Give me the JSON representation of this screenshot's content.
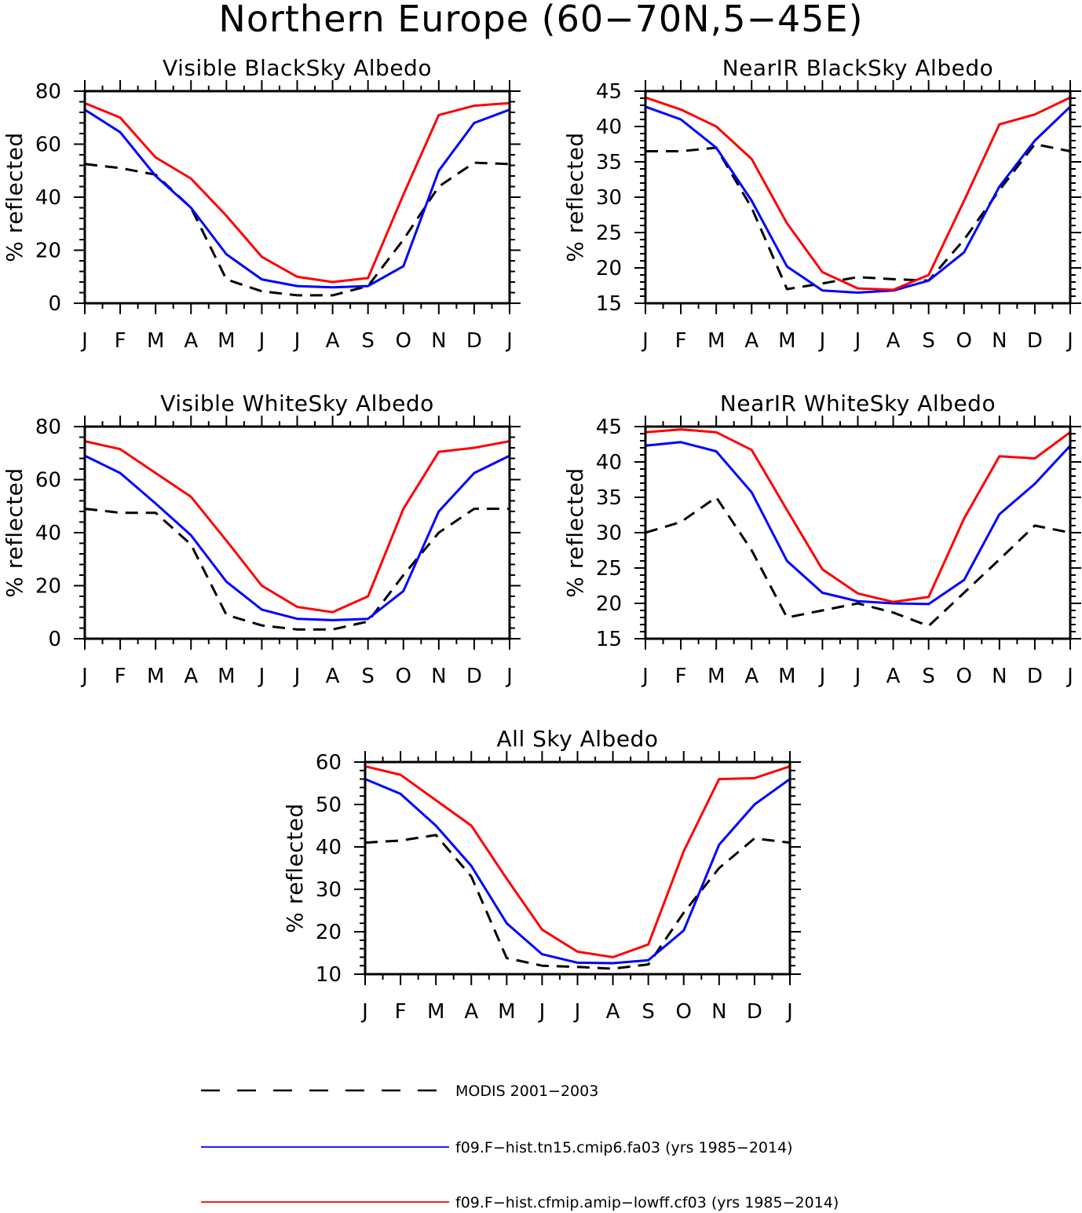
{
  "figure": {
    "title": "Northern Europe (60−70N,5−45E)"
  },
  "months": [
    "J",
    "F",
    "M",
    "A",
    "M",
    "J",
    "J",
    "A",
    "S",
    "O",
    "N",
    "D",
    "J"
  ],
  "colors": {
    "modis": "#000000",
    "fa03": "#0000ff",
    "cf03": "#ff0000"
  },
  "chart_data": [
    {
      "type": "line",
      "title": "Visible BlackSky Albedo",
      "ylabel": "% reflected",
      "categories": [
        "J",
        "F",
        "M",
        "A",
        "M",
        "J",
        "J",
        "A",
        "S",
        "O",
        "N",
        "D",
        "J"
      ],
      "ylim": [
        0,
        80
      ],
      "yticks": [
        "0",
        "20",
        "40",
        "60",
        "80"
      ],
      "series": [
        {
          "name": "MODIS 2001−2003",
          "values": [
            52.5,
            51,
            48.5,
            36,
            9,
            4.5,
            3,
            3,
            6.5,
            24,
            44,
            53,
            52.5
          ]
        },
        {
          "name": "f09.F−hist.tn15.cmip6.fa03 (yrs 1985−2014)",
          "values": [
            73,
            64.5,
            48,
            36,
            18.5,
            9,
            6.5,
            6,
            6.5,
            14,
            50,
            68,
            73
          ]
        },
        {
          "name": "f09.F−hist.cfmip.amip−lowff.cf03 (yrs 1985−2014)",
          "values": [
            75.5,
            70,
            55,
            47,
            33,
            17.5,
            10,
            8,
            9.5,
            41,
            71,
            74.5,
            75.5
          ]
        }
      ]
    },
    {
      "type": "line",
      "title": "NearIR BlackSky Albedo",
      "ylabel": "% reflected",
      "categories": [
        "J",
        "F",
        "M",
        "A",
        "M",
        "J",
        "J",
        "A",
        "S",
        "O",
        "N",
        "D",
        "J"
      ],
      "ylim": [
        15,
        45
      ],
      "yticks": [
        "15",
        "20",
        "25",
        "30",
        "35",
        "40",
        "45"
      ],
      "series": [
        {
          "name": "MODIS 2001−2003",
          "values": [
            36.5,
            36.5,
            37,
            28.5,
            17,
            17.8,
            18.7,
            18.4,
            18.2,
            24,
            31,
            37.5,
            36.5
          ]
        },
        {
          "name": "f09.F−hist.tn15.cmip6.fa03 (yrs 1985−2014)",
          "values": [
            42.8,
            41,
            37,
            29.5,
            20.2,
            16.8,
            16.5,
            16.8,
            18.2,
            22.2,
            31.5,
            38,
            42.8
          ]
        },
        {
          "name": "f09.F−hist.cfmip.amip−lowff.cf03 (yrs 1985−2014)",
          "values": [
            44.1,
            42.4,
            40,
            35.4,
            26.3,
            19.4,
            17.1,
            16.9,
            19,
            29.5,
            40.3,
            41.7,
            44.1
          ]
        }
      ]
    },
    {
      "type": "line",
      "title": "Visible WhiteSky Albedo",
      "ylabel": "% reflected",
      "categories": [
        "J",
        "F",
        "M",
        "A",
        "M",
        "J",
        "J",
        "A",
        "S",
        "O",
        "N",
        "D",
        "J"
      ],
      "ylim": [
        0,
        80
      ],
      "yticks": [
        "0",
        "20",
        "40",
        "60",
        "80"
      ],
      "series": [
        {
          "name": "MODIS 2001−2003",
          "values": [
            49,
            47.5,
            47.5,
            35.5,
            9,
            5,
            3.5,
            3.5,
            6.5,
            24,
            40,
            49,
            49
          ]
        },
        {
          "name": "f09.F−hist.tn15.cmip6.fa03 (yrs 1985−2014)",
          "values": [
            69,
            62.5,
            51,
            39,
            21.5,
            11,
            7.5,
            7,
            7.5,
            18,
            48,
            62.5,
            69
          ]
        },
        {
          "name": "f09.F−hist.cfmip.amip−lowff.cf03 (yrs 1985−2014)",
          "values": [
            74.5,
            71.5,
            62.5,
            53.5,
            37,
            20,
            12,
            10,
            16,
            49,
            70.5,
            72,
            74.5
          ]
        }
      ]
    },
    {
      "type": "line",
      "title": "NearIR WhiteSky Albedo",
      "ylabel": "% reflected",
      "categories": [
        "J",
        "F",
        "M",
        "A",
        "M",
        "J",
        "J",
        "A",
        "S",
        "O",
        "N",
        "D",
        "J"
      ],
      "ylim": [
        15,
        45
      ],
      "yticks": [
        "15",
        "20",
        "25",
        "30",
        "35",
        "40",
        "45"
      ],
      "series": [
        {
          "name": "MODIS 2001−2003",
          "values": [
            30,
            31.5,
            35,
            27.5,
            18,
            19,
            20,
            18.7,
            16.8,
            21.5,
            26.2,
            31,
            30
          ]
        },
        {
          "name": "f09.F−hist.tn15.cmip6.fa03 (yrs 1985−2014)",
          "values": [
            42.3,
            42.8,
            41.5,
            35.7,
            26,
            21.5,
            20.3,
            20,
            19.9,
            23.3,
            32.6,
            36.9,
            42.3
          ]
        },
        {
          "name": "f09.F−hist.cfmip.amip−lowff.cf03 (yrs 1985−2014)",
          "values": [
            44.2,
            44.6,
            44.2,
            41.7,
            33.2,
            24.8,
            21.4,
            20.2,
            20.9,
            32,
            40.8,
            40.5,
            44.2
          ]
        }
      ]
    },
    {
      "type": "line",
      "title": "All Sky Albedo",
      "ylabel": "% reflected",
      "categories": [
        "J",
        "F",
        "M",
        "A",
        "M",
        "J",
        "J",
        "A",
        "S",
        "O",
        "N",
        "D",
        "J"
      ],
      "ylim": [
        10,
        60
      ],
      "yticks": [
        "10",
        "20",
        "30",
        "40",
        "50",
        "60"
      ],
      "series": [
        {
          "name": "MODIS 2001−2003",
          "values": [
            41,
            41.5,
            42.8,
            33,
            13.8,
            12,
            11.7,
            11.3,
            12.3,
            24.5,
            35,
            42,
            41
          ]
        },
        {
          "name": "f09.F−hist.tn15.cmip6.fa03 (yrs 1985−2014)",
          "values": [
            56,
            52.5,
            45,
            35.5,
            22,
            14.7,
            12.7,
            12.6,
            13.3,
            20.3,
            40.5,
            50,
            56
          ]
        },
        {
          "name": "f09.F−hist.cfmip.amip−lowff.cf03 (yrs 1985−2014)",
          "values": [
            59,
            57,
            51,
            45,
            32.5,
            20.5,
            15.3,
            14,
            17,
            39,
            56,
            56.2,
            59
          ]
        }
      ]
    }
  ],
  "legend": [
    {
      "label": "MODIS 2001−2003",
      "color": "#000000",
      "style": "dashed"
    },
    {
      "label": "f09.F−hist.tn15.cmip6.fa03 (yrs 1985−2014)",
      "color": "#0000ff",
      "style": "solid"
    },
    {
      "label": "f09.F−hist.cfmip.amip−lowff.cf03 (yrs 1985−2014)",
      "color": "#ff0000",
      "style": "solid"
    }
  ]
}
